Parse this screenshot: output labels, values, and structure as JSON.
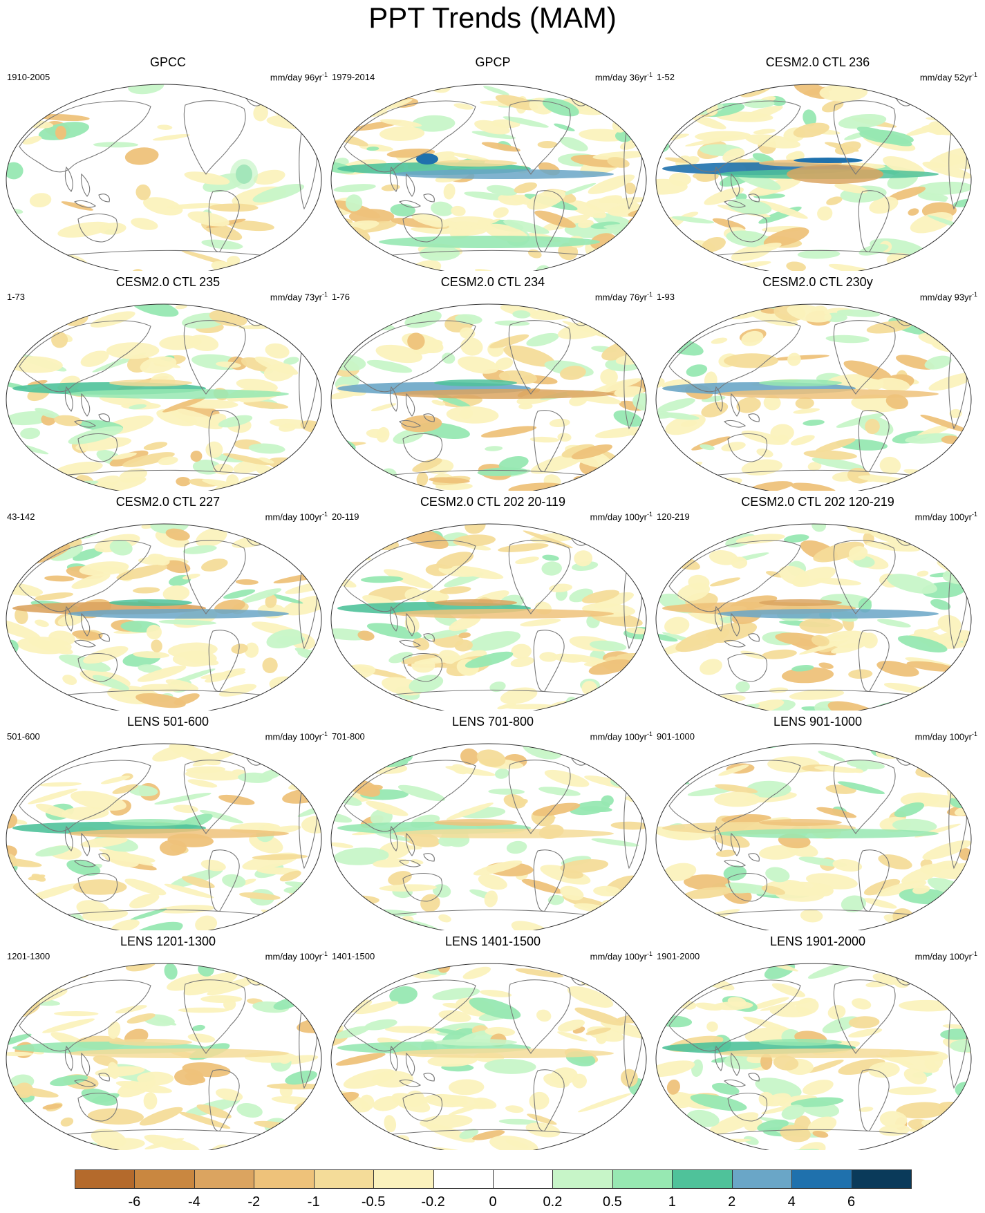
{
  "title": "PPT Trends (MAM)",
  "panels": [
    {
      "title": "GPCC",
      "period": "1910-2005",
      "units": "mm/day 96yr",
      "exp": "-1",
      "pattern": "gpcc"
    },
    {
      "title": "GPCP",
      "period": "1979-2014",
      "units": "mm/day 36yr",
      "exp": "-1",
      "pattern": "gpcp"
    },
    {
      "title": "CESM2.0 CTL 236",
      "period": "1-52",
      "units": "mm/day 52yr",
      "exp": "-1",
      "pattern": "a"
    },
    {
      "title": "CESM2.0 CTL 235",
      "period": "1-73",
      "units": "mm/day 73yr",
      "exp": "-1",
      "pattern": "b"
    },
    {
      "title": "CESM2.0 CTL 234",
      "period": "1-76",
      "units": "mm/day 76yr",
      "exp": "-1",
      "pattern": "c"
    },
    {
      "title": "CESM2.0 CTL 230y",
      "period": "1-93",
      "units": "mm/day 93yr",
      "exp": "-1",
      "pattern": "d"
    },
    {
      "title": "CESM2.0 CTL 227",
      "period": "43-142",
      "units": "mm/day 100yr",
      "exp": "-1",
      "pattern": "e"
    },
    {
      "title": "CESM2.0 CTL 202 20-119",
      "period": "20-119",
      "units": "mm/day 100yr",
      "exp": "-1",
      "pattern": "f"
    },
    {
      "title": "CESM2.0 CTL 202 120-219",
      "period": "120-219",
      "units": "mm/day 100yr",
      "exp": "-1",
      "pattern": "g"
    },
    {
      "title": "LENS 501-600",
      "period": "501-600",
      "units": "mm/day 100yr",
      "exp": "-1",
      "pattern": "h"
    },
    {
      "title": "LENS 701-800",
      "period": "701-800",
      "units": "mm/day 100yr",
      "exp": "-1",
      "pattern": "i"
    },
    {
      "title": "LENS 901-1000",
      "period": "901-1000",
      "units": "mm/day 100yr",
      "exp": "-1",
      "pattern": "j"
    },
    {
      "title": "LENS 1201-1300",
      "period": "1201-1300",
      "units": "mm/day 100yr",
      "exp": "-1",
      "pattern": "k"
    },
    {
      "title": "LENS 1401-1500",
      "period": "1401-1500",
      "units": "mm/day 100yr",
      "exp": "-1",
      "pattern": "l"
    },
    {
      "title": "LENS 1901-2000",
      "period": "1901-2000",
      "units": "mm/day 100yr",
      "exp": "-1",
      "pattern": "m"
    }
  ],
  "colorbar": {
    "labels": [
      "-6",
      "-4",
      "-2",
      "-1",
      "-0.5",
      "-0.2",
      "0",
      "0.2",
      "0.5",
      "1",
      "2",
      "4",
      "6"
    ],
    "colors": [
      "#b46a2c",
      "#c98740",
      "#dba460",
      "#eec27a",
      "#f4dc99",
      "#fbf2bd",
      "#ffffff",
      "#ffffff",
      "#c7f5c8",
      "#97e8b2",
      "#4fc29a",
      "#6aa6c7",
      "#1f71ad",
      "#0a3a5a"
    ]
  }
}
